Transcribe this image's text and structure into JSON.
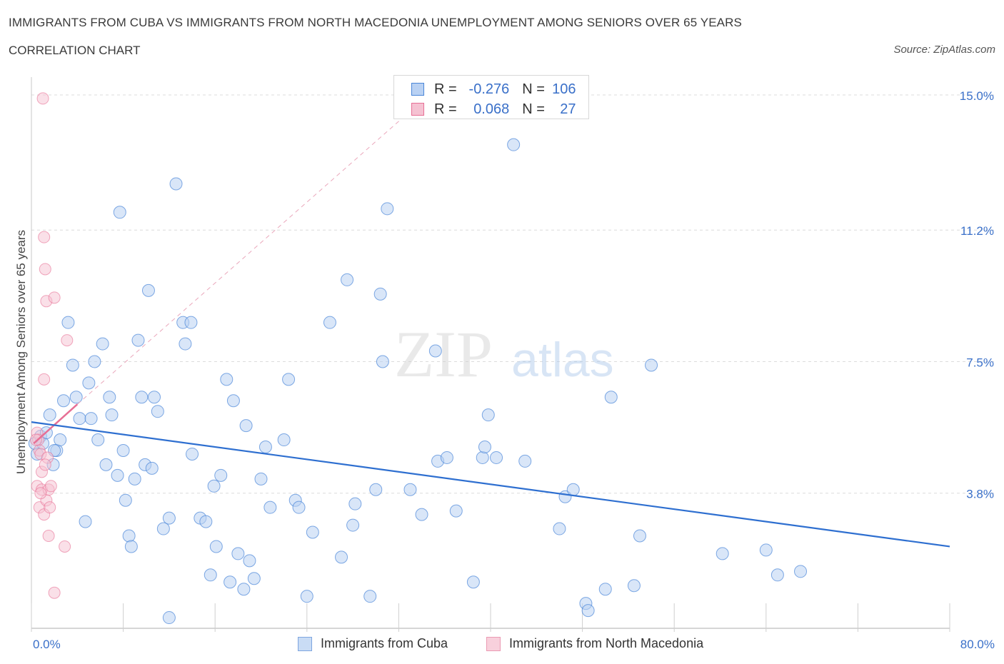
{
  "title": "IMMIGRANTS FROM CUBA VS IMMIGRANTS FROM NORTH MACEDONIA UNEMPLOYMENT AMONG SENIORS OVER 65 YEARS",
  "subtitle": "CORRELATION CHART",
  "source": "Source: ZipAtlas.com",
  "watermark": {
    "zip": "ZIP",
    "atlas": "atlas"
  },
  "legend_top": [
    {
      "r_label": "R =",
      "r": "-0.276",
      "n_label": "N =",
      "n": "106"
    },
    {
      "r_label": "R =",
      "r": "0.068",
      "n_label": "N =",
      "n": "27"
    }
  ],
  "colors": {
    "cuba": "#4a86d8",
    "cuba_fill": "#b9d1f3",
    "macedonia": "#e76f95",
    "macedonia_fill": "#f5c2d2",
    "axis_blue": "#3a70c9"
  },
  "chart_data": {
    "type": "scatter",
    "title": "IMMIGRANTS FROM CUBA VS IMMIGRANTS FROM NORTH MACEDONIA UNEMPLOYMENT AMONG SENIORS OVER 65 YEARS",
    "xlabel": "",
    "ylabel": "Unemployment Among Seniors over 65 years",
    "xlim": [
      0,
      80
    ],
    "ylim": [
      0,
      15.3
    ],
    "x_tick_labels": [
      "0.0%",
      "80.0%"
    ],
    "y_ticks": [
      3.8,
      7.5,
      11.2,
      15.0
    ],
    "y_tick_labels": [
      "3.8%",
      "7.5%",
      "11.2%",
      "15.0%"
    ],
    "grid": true,
    "legend": "bottom",
    "series": [
      {
        "name": "Immigrants from Cuba",
        "trend": {
          "x": [
            0,
            80
          ],
          "y": [
            5.8,
            2.3
          ]
        },
        "points": [
          [
            0.3,
            5.2
          ],
          [
            0.5,
            4.9
          ],
          [
            0.8,
            5.4
          ],
          [
            1.0,
            5.2
          ],
          [
            1.3,
            5.5
          ],
          [
            1.6,
            6.0
          ],
          [
            1.9,
            4.6
          ],
          [
            2.2,
            5.0
          ],
          [
            2.5,
            5.3
          ],
          [
            2.8,
            6.4
          ],
          [
            3.2,
            8.6
          ],
          [
            3.6,
            7.4
          ],
          [
            3.9,
            6.5
          ],
          [
            4.2,
            5.9
          ],
          [
            4.7,
            3.0
          ],
          [
            5.0,
            6.9
          ],
          [
            5.2,
            5.9
          ],
          [
            5.5,
            7.5
          ],
          [
            5.8,
            5.3
          ],
          [
            6.2,
            8.0
          ],
          [
            6.5,
            4.6
          ],
          [
            6.8,
            6.5
          ],
          [
            7.0,
            6.0
          ],
          [
            7.5,
            4.3
          ],
          [
            7.7,
            11.7
          ],
          [
            8.0,
            5.0
          ],
          [
            8.2,
            3.6
          ],
          [
            8.5,
            2.6
          ],
          [
            8.7,
            2.3
          ],
          [
            9.0,
            4.2
          ],
          [
            9.3,
            8.1
          ],
          [
            9.6,
            6.5
          ],
          [
            9.9,
            4.6
          ],
          [
            10.2,
            9.5
          ],
          [
            10.5,
            4.5
          ],
          [
            10.7,
            6.5
          ],
          [
            11.0,
            6.1
          ],
          [
            11.5,
            2.8
          ],
          [
            12.0,
            3.1
          ],
          [
            12.0,
            0.3
          ],
          [
            12.6,
            12.5
          ],
          [
            13.2,
            8.6
          ],
          [
            13.4,
            8.0
          ],
          [
            13.9,
            8.6
          ],
          [
            14.0,
            4.9
          ],
          [
            14.7,
            3.1
          ],
          [
            15.2,
            3.0
          ],
          [
            15.6,
            1.5
          ],
          [
            15.9,
            4.0
          ],
          [
            16.1,
            2.3
          ],
          [
            16.5,
            4.3
          ],
          [
            17.0,
            7.0
          ],
          [
            17.3,
            1.3
          ],
          [
            17.6,
            6.4
          ],
          [
            18.0,
            2.1
          ],
          [
            18.5,
            1.1
          ],
          [
            18.7,
            5.7
          ],
          [
            19.0,
            1.9
          ],
          [
            19.4,
            1.4
          ],
          [
            20.0,
            4.2
          ],
          [
            20.4,
            5.1
          ],
          [
            20.8,
            3.4
          ],
          [
            22.0,
            5.3
          ],
          [
            22.4,
            7.0
          ],
          [
            23.0,
            3.6
          ],
          [
            23.3,
            3.4
          ],
          [
            24.0,
            0.9
          ],
          [
            24.5,
            2.7
          ],
          [
            26.0,
            8.6
          ],
          [
            27.0,
            2.0
          ],
          [
            27.5,
            9.8
          ],
          [
            28.0,
            2.9
          ],
          [
            28.2,
            3.5
          ],
          [
            29.5,
            0.9
          ],
          [
            30.0,
            3.9
          ],
          [
            30.4,
            9.4
          ],
          [
            30.6,
            7.5
          ],
          [
            31.0,
            11.8
          ],
          [
            33.0,
            3.9
          ],
          [
            34.0,
            3.2
          ],
          [
            35.2,
            7.8
          ],
          [
            35.4,
            4.7
          ],
          [
            36.2,
            4.8
          ],
          [
            37.0,
            3.3
          ],
          [
            38.5,
            1.3
          ],
          [
            39.3,
            4.8
          ],
          [
            39.5,
            5.1
          ],
          [
            39.8,
            6.0
          ],
          [
            40.5,
            4.8
          ],
          [
            42.0,
            13.6
          ],
          [
            43.0,
            4.7
          ],
          [
            46.0,
            2.8
          ],
          [
            46.5,
            3.7
          ],
          [
            47.2,
            3.9
          ],
          [
            48.3,
            0.7
          ],
          [
            48.5,
            0.5
          ],
          [
            50.0,
            1.1
          ],
          [
            50.5,
            6.5
          ],
          [
            52.5,
            1.2
          ],
          [
            53.0,
            2.6
          ],
          [
            54.0,
            7.4
          ],
          [
            60.2,
            2.1
          ],
          [
            64.0,
            2.2
          ],
          [
            65.0,
            1.5
          ],
          [
            67.0,
            1.6
          ],
          [
            2.0,
            5.0
          ]
        ]
      },
      {
        "name": "Immigrants from North Macedonia",
        "trend": {
          "x": [
            0.2,
            4.0
          ],
          "y": [
            5.2,
            6.3
          ]
        },
        "trend_extension": {
          "x": [
            4.0,
            32.5
          ],
          "y": [
            6.3,
            14.4
          ]
        },
        "points": [
          [
            0.5,
            5.5
          ],
          [
            0.6,
            5.3
          ],
          [
            0.7,
            5.0
          ],
          [
            0.8,
            4.9
          ],
          [
            0.9,
            4.4
          ],
          [
            0.5,
            4.0
          ],
          [
            0.7,
            3.4
          ],
          [
            0.9,
            3.9
          ],
          [
            1.1,
            3.2
          ],
          [
            1.3,
            3.6
          ],
          [
            1.0,
            14.9
          ],
          [
            1.1,
            11.0
          ],
          [
            1.2,
            10.1
          ],
          [
            1.3,
            9.2
          ],
          [
            1.1,
            7.0
          ],
          [
            1.4,
            4.8
          ],
          [
            1.5,
            3.9
          ],
          [
            1.7,
            4.0
          ],
          [
            1.6,
            3.4
          ],
          [
            2.0,
            9.3
          ],
          [
            3.1,
            8.1
          ],
          [
            1.5,
            2.6
          ],
          [
            2.9,
            2.3
          ],
          [
            2.0,
            1.0
          ],
          [
            0.4,
            5.3
          ],
          [
            1.2,
            4.6
          ],
          [
            0.8,
            3.8
          ]
        ]
      }
    ]
  },
  "legend_bottom": [
    {
      "label": "Immigrants from Cuba"
    },
    {
      "label": "Immigrants from North Macedonia"
    }
  ]
}
